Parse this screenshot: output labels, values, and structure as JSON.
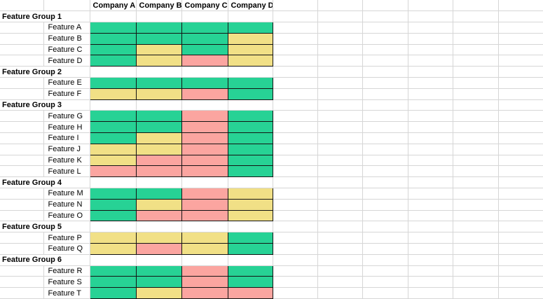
{
  "spreadsheet": {
    "company_columns": [
      "Company A",
      "Company B",
      "Company C",
      "Company D"
    ],
    "status_colors": {
      "green": "#27d295",
      "yellow": "#f1e086",
      "red": "#fba5a0"
    },
    "grid_line_color": "#d6d6d6",
    "rating_border_color": "#141414",
    "groups": [
      {
        "label": "Feature Group 1",
        "features": [
          {
            "label": "Feature A",
            "ratings": [
              "green",
              "green",
              "green",
              "green"
            ]
          },
          {
            "label": "Feature B",
            "ratings": [
              "green",
              "green",
              "green",
              "yellow"
            ]
          },
          {
            "label": "Feature C",
            "ratings": [
              "green",
              "yellow",
              "green",
              "yellow"
            ]
          },
          {
            "label": "Feature D",
            "ratings": [
              "green",
              "yellow",
              "red",
              "yellow"
            ]
          }
        ]
      },
      {
        "label": "Feature Group 2",
        "features": [
          {
            "label": "Feature E",
            "ratings": [
              "green",
              "green",
              "green",
              "green"
            ]
          },
          {
            "label": "Feature F",
            "ratings": [
              "yellow",
              "yellow",
              "red",
              "green"
            ]
          }
        ]
      },
      {
        "label": "Feature Group 3",
        "features": [
          {
            "label": "Feature G",
            "ratings": [
              "green",
              "green",
              "red",
              "green"
            ]
          },
          {
            "label": "Feature H",
            "ratings": [
              "green",
              "green",
              "red",
              "green"
            ]
          },
          {
            "label": "Feature I",
            "ratings": [
              "green",
              "yellow",
              "red",
              "green"
            ]
          },
          {
            "label": "Feature J",
            "ratings": [
              "yellow",
              "yellow",
              "red",
              "green"
            ]
          },
          {
            "label": "Feature K",
            "ratings": [
              "yellow",
              "red",
              "red",
              "green"
            ]
          },
          {
            "label": "Feature L",
            "ratings": [
              "red",
              "red",
              "red",
              "green"
            ]
          }
        ]
      },
      {
        "label": "Feature Group 4",
        "features": [
          {
            "label": "Feature M",
            "ratings": [
              "green",
              "green",
              "red",
              "yellow"
            ]
          },
          {
            "label": "Feature N",
            "ratings": [
              "green",
              "yellow",
              "red",
              "yellow"
            ]
          },
          {
            "label": "Feature O",
            "ratings": [
              "green",
              "red",
              "red",
              "yellow"
            ]
          }
        ]
      },
      {
        "label": "Feature Group 5",
        "features": [
          {
            "label": "Feature P",
            "ratings": [
              "yellow",
              "yellow",
              "yellow",
              "green"
            ]
          },
          {
            "label": "Feature Q",
            "ratings": [
              "yellow",
              "red",
              "yellow",
              "green"
            ]
          }
        ]
      },
      {
        "label": "Feature Group 6",
        "features": [
          {
            "label": "Feature R",
            "ratings": [
              "green",
              "green",
              "red",
              "green"
            ]
          },
          {
            "label": "Feature S",
            "ratings": [
              "green",
              "green",
              "red",
              "green"
            ]
          },
          {
            "label": "Feature T",
            "ratings": [
              "green",
              "yellow",
              "red",
              "red"
            ]
          }
        ]
      }
    ]
  }
}
